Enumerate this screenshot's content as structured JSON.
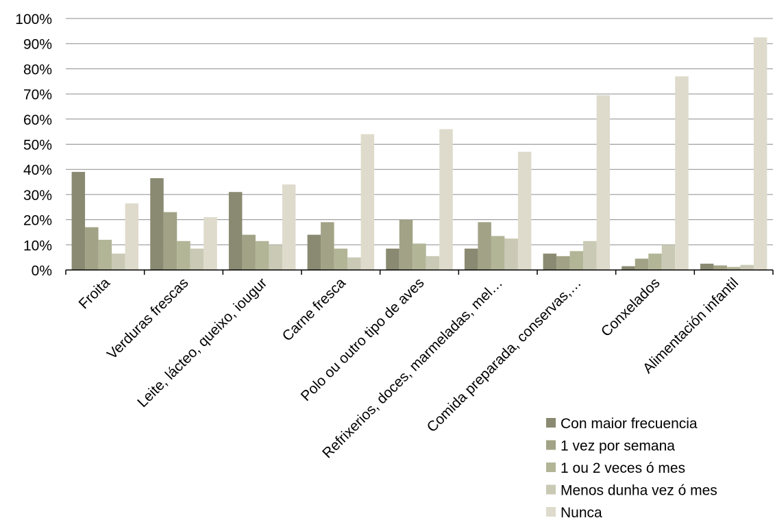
{
  "chart_data": {
    "type": "bar",
    "title": "",
    "xlabel": "",
    "ylabel": "",
    "ylim": [
      0,
      100
    ],
    "yticks": [
      "0%",
      "10%",
      "20%",
      "30%",
      "40%",
      "50%",
      "60%",
      "70%",
      "80%",
      "90%",
      "100%"
    ],
    "grid": true,
    "legend_position": "bottom-right",
    "categories": [
      "Froita",
      "Verduras frescas",
      "Leite, lácteo, queixo, iougur",
      "Carne fresca",
      "Polo ou outro tipo de aves",
      "Refrixerios, doces, marmeladas, mel…",
      "Comida preparada, conservas,…",
      "Conxelados",
      "Alimentación infantil"
    ],
    "series": [
      {
        "name": "Con maior frecuencia",
        "color": "#8a8a72",
        "values": [
          39,
          36.5,
          31,
          14,
          8.5,
          8.5,
          6.5,
          1.5,
          2.5
        ]
      },
      {
        "name": "1 vez por semana",
        "color": "#a2a286",
        "values": [
          17,
          23,
          14,
          19,
          20,
          19,
          5.5,
          4.5,
          1.8
        ]
      },
      {
        "name": "1 ou 2 veces ó mes",
        "color": "#b3b597",
        "values": [
          12,
          11.5,
          11.5,
          8.5,
          10.5,
          13.5,
          7.5,
          6.5,
          1.2
        ]
      },
      {
        "name": "Menos dunha vez ó mes",
        "color": "#c9c9b5",
        "values": [
          6.5,
          8.5,
          10,
          5,
          5.5,
          12.5,
          11.5,
          10,
          2
        ]
      },
      {
        "name": "Nunca",
        "color": "#dedbcc",
        "values": [
          26.5,
          21,
          34,
          54,
          56,
          47,
          69.5,
          77,
          92.5
        ]
      }
    ]
  }
}
